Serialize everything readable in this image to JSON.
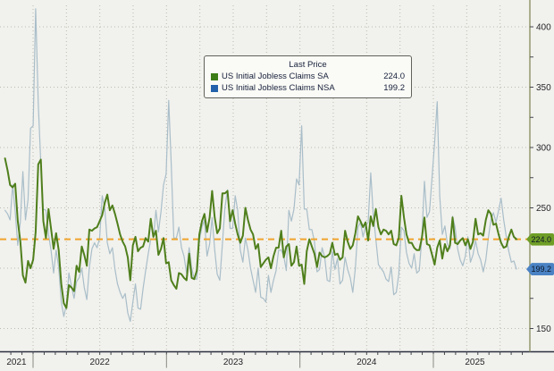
{
  "chart_data": {
    "type": "line",
    "legend": {
      "title": "Last Price",
      "entries": [
        {
          "label": "US Initial Jobless Claims SA",
          "value": "224.0",
          "swatch_color": "#3c7d17"
        },
        {
          "label": "US Initial Jobless Claims NSA",
          "value": "199.2",
          "swatch_color": "#2361ab"
        }
      ]
    },
    "y_axis": {
      "gridline_values": [
        150,
        200,
        250,
        300,
        350,
        400
      ],
      "tick_label_values": [
        150,
        250,
        300,
        350,
        400
      ],
      "minor_tick_values": [
        175,
        225,
        275,
        325,
        375
      ],
      "range": [
        129,
        416
      ],
      "grid": "dotted",
      "side": "right"
    },
    "x_axis": {
      "years": [
        "2021",
        "2022",
        "2023",
        "2024",
        "2025"
      ],
      "span": "Oct 2021 - Aug 2025",
      "grid": "dotted-quarterly"
    },
    "last_price_line": {
      "value": 224.0,
      "color": "#f0a42d",
      "style": "dashed"
    },
    "badges": [
      {
        "text": "224.0",
        "value": 224.0,
        "color": "#6f9e27"
      },
      {
        "text": "199.2",
        "value": 199.2,
        "color": "#4a82c4"
      }
    ],
    "series": [
      {
        "name": "US Initial Jobless Claims SA",
        "color": "#4f7f1c",
        "width": 2,
        "values": [
          291,
          281,
          269,
          267,
          270,
          239,
          222,
          194,
          188,
          206,
          200,
          207,
          230,
          286,
          290,
          239,
          225,
          249,
          233,
          216,
          229,
          215,
          187,
          171,
          167,
          186,
          184,
          181,
          202,
          197,
          218,
          211,
          202,
          232,
          231,
          233,
          234,
          239,
          244,
          254,
          261,
          248,
          252,
          245,
          237,
          228,
          222,
          218,
          209,
          190,
          219,
          226,
          214,
          217,
          218,
          225,
          222,
          241,
          226,
          231,
          211,
          216,
          225,
          204,
          205,
          190,
          186,
          183,
          196,
          195,
          192,
          190,
          212,
          192,
          191,
          198,
          228,
          239,
          245,
          230,
          242,
          264,
          242,
          229,
          233,
          262,
          262,
          264,
          239,
          248,
          237,
          228,
          221,
          227,
          250,
          240,
          232,
          228,
          216,
          220,
          201,
          204,
          207,
          209,
          200,
          210,
          217,
          217,
          231,
          209,
          218,
          220,
          202,
          205,
          218,
          202,
          203,
          187,
          214,
          224,
          218,
          212,
          201,
          213,
          210,
          209,
          210,
          212,
          221,
          211,
          212,
          207,
          209,
          231,
          222,
          216,
          219,
          229,
          243,
          239,
          234,
          238,
          223,
          243,
          235,
          249,
          234,
          228,
          232,
          231,
          228,
          231,
          220,
          219,
          225,
          260,
          242,
          228,
          221,
          221,
          217,
          215,
          215,
          225,
          242,
          220,
          219,
          211,
          203,
          217,
          223,
          208,
          220,
          214,
          219,
          242,
          221,
          220,
          223,
          225,
          219,
          224,
          216,
          222,
          241,
          228,
          229,
          227,
          240,
          248,
          245,
          236,
          237,
          228,
          221,
          217,
          218,
          226,
          232,
          226,
          224.0
        ]
      },
      {
        "name": "US Initial Jobless Claims NSA",
        "color": "#a9bec9",
        "width": 1.2,
        "values": [
          248,
          245,
          240,
          269,
          247,
          219,
          239,
          280,
          240,
          257,
          316,
          318,
          415,
          337,
          286,
          249,
          248,
          228,
          215,
          196,
          215,
          201,
          172,
          160,
          170,
          196,
          185,
          175,
          189,
          192,
          200,
          184,
          174,
          201,
          216,
          221,
          217,
          225,
          260,
          250,
          221,
          212,
          217,
          199,
          187,
          180,
          175,
          179,
          163,
          156,
          172,
          187,
          167,
          166,
          183,
          198,
          212,
          224,
          224,
          248,
          230,
          247,
          269,
          278,
          339,
          287,
          225,
          225,
          234,
          217,
          210,
          196,
          217,
          200,
          191,
          191,
          223,
          234,
          240,
          210,
          220,
          242,
          215,
          195,
          190,
          220,
          250,
          265,
          233,
          233,
          260,
          248,
          215,
          205,
          225,
          215,
          200,
          190,
          180,
          200,
          176,
          175,
          172,
          194,
          180,
          190,
          198,
          215,
          215,
          210,
          198,
          248,
          239,
          249,
          274,
          269,
          318,
          249,
          249,
          232,
          232,
          222,
          197,
          199,
          217,
          209,
          190,
          189,
          214,
          199,
          208,
          187,
          190,
          209,
          199,
          192,
          180,
          200,
          234,
          238,
          226,
          235,
          238,
          279,
          245,
          224,
          203,
          200,
          197,
          191,
          189,
          201,
          178,
          180,
          195,
          234,
          231,
          213,
          204,
          200,
          212,
          196,
          198,
          225,
          272,
          242,
          247,
          276,
          304,
          338,
          260,
          228,
          235,
          220,
          216,
          243,
          234,
          216,
          207,
          202,
          210,
          226,
          205,
          211,
          223,
          212,
          207,
          197,
          207,
          225,
          240,
          246,
          238,
          248,
          258,
          240,
          226,
          214,
          205,
          206,
          199.2
        ]
      }
    ]
  }
}
